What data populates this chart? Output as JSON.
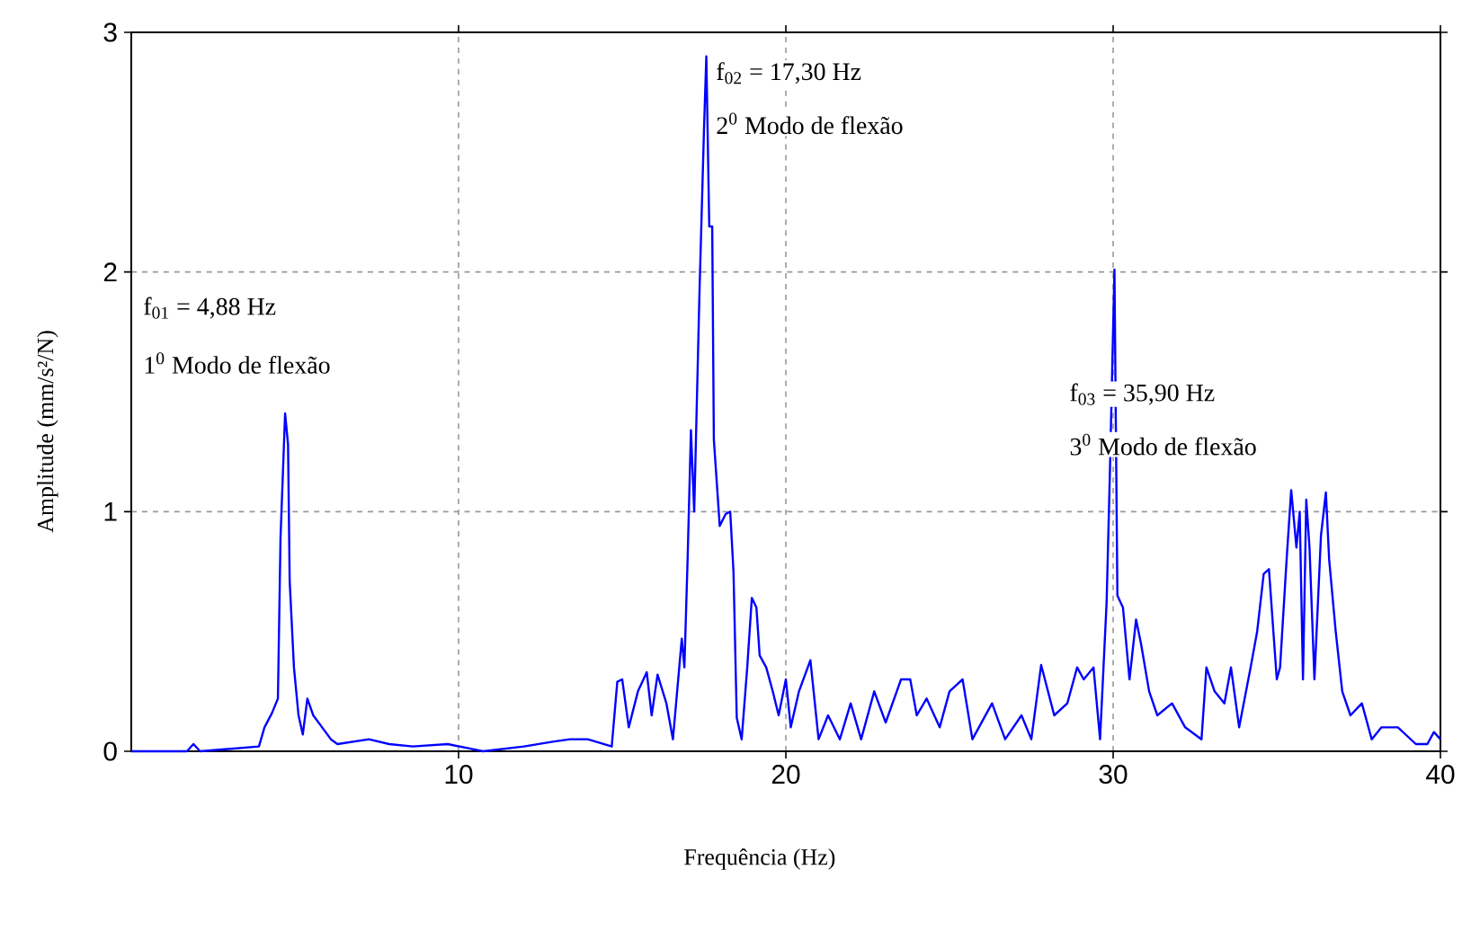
{
  "chart_data": {
    "type": "line",
    "xlabel": "Frequência (Hz)",
    "ylabel": "Amplitude (mm/s²/N)",
    "annotations": [
      "f$_{01}$ = 4,88 Hz",
      "1$^{0}$ Modo de flexão",
      "f$_{02}$ = 17,30 Hz",
      "2$^{0}$ Modo de flexão",
      "f$_{03}$ = 35,90 Hz",
      "3$^{0}$ Modo de flexão"
    ],
    "xlim": [
      0,
      40
    ],
    "ylim": [
      0,
      3
    ],
    "xticks": [
      10,
      20,
      30,
      40
    ],
    "yticks": [
      0,
      1,
      2,
      3
    ],
    "grid": true,
    "series": [
      {
        "color": "#0000ff",
        "x": [
          0,
          1.7,
          1.9,
          2.1,
          3.9,
          4.07,
          4.3,
          4.48,
          4.56,
          4.7,
          4.79,
          4.84,
          4.97,
          5.11,
          5.24,
          5.38,
          5.56,
          5.83,
          6.1,
          6.3,
          7.26,
          7.88,
          8.6,
          9.67,
          10.4,
          10.75,
          12.0,
          12.87,
          13.4,
          13.95,
          14.68,
          14.85,
          15.0,
          15.2,
          15.48,
          15.75,
          15.9,
          16.08,
          16.35,
          16.55,
          16.82,
          16.9,
          17.0,
          17.1,
          17.2,
          17.36,
          17.5,
          17.57,
          17.66,
          17.75,
          17.8,
          17.98,
          18.16,
          18.3,
          18.4,
          18.5,
          18.65,
          18.82,
          18.96,
          19.1,
          19.2,
          19.4,
          19.6,
          19.78,
          20.0,
          20.15,
          20.4,
          20.75,
          21.0,
          21.29,
          21.65,
          21.98,
          22.3,
          22.7,
          23.05,
          23.52,
          23.8,
          24.0,
          24.3,
          24.7,
          25.0,
          25.4,
          25.7,
          26.3,
          26.7,
          27.2,
          27.5,
          27.8,
          28.2,
          28.6,
          28.9,
          29.1,
          29.4,
          29.6,
          29.8,
          29.9,
          30.04,
          30.13,
          30.3,
          30.5,
          30.7,
          30.85,
          31.1,
          31.35,
          31.8,
          32.2,
          32.7,
          32.85,
          33.1,
          33.4,
          33.6,
          33.85,
          34.2,
          34.4,
          34.6,
          34.76,
          35.0,
          35.1,
          35.3,
          35.44,
          35.6,
          35.7,
          35.8,
          35.9,
          36.0,
          36.15,
          36.35,
          36.5,
          36.6,
          36.8,
          37.0,
          37.25,
          37.6,
          37.9,
          38.2,
          38.7,
          39.25,
          39.6,
          39.8,
          40.0
        ],
        "values": [
          0,
          0,
          0.03,
          0,
          0.02,
          0.1,
          0.16,
          0.22,
          0.89,
          1.41,
          1.28,
          0.71,
          0.35,
          0.15,
          0.07,
          0.22,
          0.15,
          0.1,
          0.05,
          0.03,
          0.05,
          0.03,
          0.02,
          0.03,
          0.01,
          0,
          0.02,
          0.04,
          0.05,
          0.05,
          0.02,
          0.29,
          0.3,
          0.1,
          0.25,
          0.33,
          0.15,
          0.32,
          0.2,
          0.05,
          0.47,
          0.35,
          0.81,
          1.34,
          1.0,
          1.91,
          2.6,
          2.9,
          2.19,
          2.19,
          1.3,
          0.94,
          0.99,
          1.0,
          0.75,
          0.14,
          0.05,
          0.35,
          0.64,
          0.6,
          0.4,
          0.35,
          0.25,
          0.15,
          0.3,
          0.1,
          0.25,
          0.38,
          0.05,
          0.15,
          0.05,
          0.2,
          0.05,
          0.25,
          0.12,
          0.3,
          0.3,
          0.15,
          0.22,
          0.1,
          0.25,
          0.3,
          0.05,
          0.2,
          0.05,
          0.15,
          0.05,
          0.36,
          0.15,
          0.2,
          0.35,
          0.3,
          0.35,
          0.05,
          0.62,
          1.16,
          2.01,
          0.65,
          0.6,
          0.3,
          0.55,
          0.45,
          0.25,
          0.15,
          0.2,
          0.1,
          0.05,
          0.35,
          0.25,
          0.2,
          0.35,
          0.1,
          0.35,
          0.5,
          0.74,
          0.76,
          0.3,
          0.35,
          0.8,
          1.09,
          0.85,
          1.0,
          0.3,
          1.05,
          0.85,
          0.3,
          0.9,
          1.08,
          0.8,
          0.5,
          0.25,
          0.15,
          0.2,
          0.05,
          0.1,
          0.1,
          0.03,
          0.03,
          0.08,
          0.05
        ]
      }
    ]
  }
}
